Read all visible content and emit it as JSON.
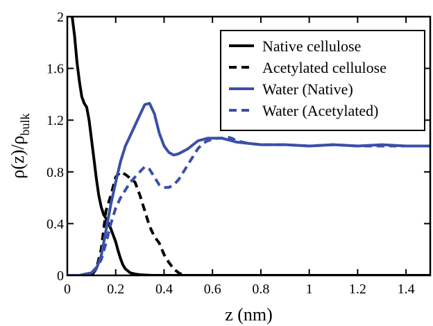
{
  "chart_data": {
    "type": "line",
    "xlabel": "z (nm)",
    "ylabel_main": "ρ(z)/ρ",
    "ylabel_sub": "bulk",
    "xlim": [
      0,
      1.5
    ],
    "ylim": [
      0,
      2
    ],
    "x_ticks": [
      0,
      0.2,
      0.4,
      0.6,
      0.8,
      1,
      1.2,
      1.4
    ],
    "x_tick_labels": [
      "0",
      "0.2",
      "0.4",
      "0.6",
      "0.8",
      "1",
      "1.2",
      "1.4"
    ],
    "y_ticks": [
      0,
      0.4,
      0.8,
      1.2,
      1.6,
      2
    ],
    "y_tick_labels": [
      "0",
      "0.4",
      "0.8",
      "1.2",
      "1.6",
      "2"
    ],
    "grid": false,
    "legend_position": "top-right",
    "series": [
      {
        "name": "Native cellulose",
        "color": "#000000",
        "style": "solid",
        "x": [
          0.02,
          0.03,
          0.04,
          0.05,
          0.06,
          0.07,
          0.08,
          0.09,
          0.1,
          0.11,
          0.12,
          0.13,
          0.14,
          0.15,
          0.16,
          0.17,
          0.18,
          0.19,
          0.2,
          0.21,
          0.22,
          0.23,
          0.24,
          0.26,
          0.28,
          0.3,
          0.35,
          0.4,
          0.45,
          0.5,
          0.6,
          0.8,
          1.0,
          1.5
        ],
        "y": [
          2.0,
          1.85,
          1.65,
          1.5,
          1.38,
          1.33,
          1.3,
          1.2,
          1.05,
          0.9,
          0.75,
          0.62,
          0.53,
          0.47,
          0.44,
          0.4,
          0.36,
          0.31,
          0.26,
          0.19,
          0.13,
          0.08,
          0.05,
          0.02,
          0.01,
          0.005,
          0.0,
          0.0,
          0.0,
          0.0,
          0.0,
          0.0,
          0.0,
          0.0
        ]
      },
      {
        "name": "Acetylated cellulose",
        "color": "#000000",
        "style": "dashed",
        "x": [
          0.1,
          0.12,
          0.14,
          0.16,
          0.18,
          0.2,
          0.22,
          0.24,
          0.26,
          0.28,
          0.3,
          0.32,
          0.34,
          0.36,
          0.38,
          0.4,
          0.42,
          0.44,
          0.46,
          0.48,
          0.5
        ],
        "y": [
          0.0,
          0.05,
          0.2,
          0.5,
          0.62,
          0.76,
          0.8,
          0.78,
          0.75,
          0.72,
          0.62,
          0.5,
          0.38,
          0.3,
          0.25,
          0.16,
          0.1,
          0.05,
          0.02,
          0.0,
          0.0
        ]
      },
      {
        "name": "Water (Native)",
        "color": "#3b4fa8",
        "style": "solid",
        "x": [
          0.0,
          0.05,
          0.1,
          0.12,
          0.14,
          0.16,
          0.18,
          0.2,
          0.22,
          0.24,
          0.26,
          0.28,
          0.3,
          0.32,
          0.34,
          0.36,
          0.38,
          0.4,
          0.42,
          0.44,
          0.46,
          0.48,
          0.5,
          0.52,
          0.54,
          0.56,
          0.58,
          0.6,
          0.62,
          0.64,
          0.66,
          0.68,
          0.7,
          0.75,
          0.8,
          0.9,
          1.0,
          1.1,
          1.2,
          1.3,
          1.4,
          1.5
        ],
        "y": [
          0.0,
          0.0,
          0.02,
          0.05,
          0.15,
          0.35,
          0.55,
          0.72,
          0.88,
          1.0,
          1.08,
          1.16,
          1.24,
          1.32,
          1.33,
          1.25,
          1.1,
          1.0,
          0.95,
          0.93,
          0.94,
          0.96,
          0.98,
          1.01,
          1.04,
          1.05,
          1.06,
          1.06,
          1.06,
          1.06,
          1.05,
          1.04,
          1.03,
          1.02,
          1.01,
          1.01,
          1.0,
          1.01,
          1.0,
          1.01,
          1.0,
          1.0
        ]
      },
      {
        "name": "Water (Acetylated)",
        "color": "#3b4fa8",
        "style": "dashed",
        "x": [
          0.0,
          0.05,
          0.1,
          0.12,
          0.14,
          0.16,
          0.18,
          0.2,
          0.22,
          0.24,
          0.26,
          0.28,
          0.3,
          0.32,
          0.34,
          0.36,
          0.38,
          0.4,
          0.42,
          0.44,
          0.46,
          0.48,
          0.5,
          0.52,
          0.54,
          0.56,
          0.58,
          0.6,
          0.62,
          0.64,
          0.66,
          0.68,
          0.7,
          0.75,
          0.8,
          0.9,
          1.0,
          1.1,
          1.2,
          1.3,
          1.4,
          1.5
        ],
        "y": [
          0.0,
          0.0,
          0.02,
          0.06,
          0.12,
          0.25,
          0.4,
          0.52,
          0.6,
          0.66,
          0.72,
          0.76,
          0.8,
          0.84,
          0.82,
          0.76,
          0.7,
          0.68,
          0.68,
          0.7,
          0.74,
          0.8,
          0.86,
          0.92,
          0.98,
          1.02,
          1.04,
          1.05,
          1.06,
          1.06,
          1.07,
          1.06,
          1.04,
          1.02,
          1.01,
          1.01,
          1.0,
          1.01,
          1.0,
          1.0,
          1.0,
          1.0
        ]
      }
    ]
  }
}
